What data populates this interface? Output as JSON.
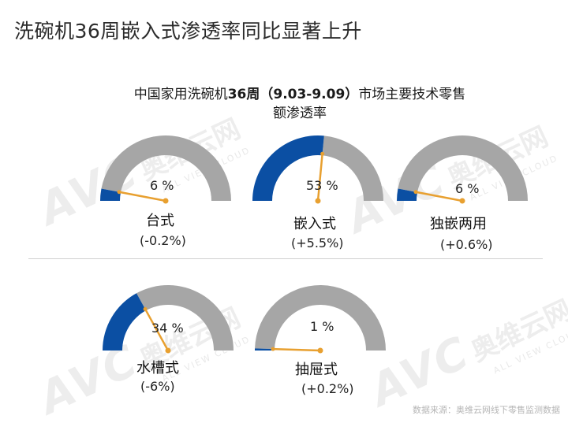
{
  "page_title": "洗碗机36周嵌入式渗透率同比显著上升",
  "chart_title": {
    "prefix": "中国家用洗碗机",
    "week": "36周",
    "range": "（9.03-9.09）",
    "suffix": "市场主要技术零售",
    "line2": "额渗透率"
  },
  "watermark": {
    "logo": "AVC",
    "cn": "奥维云网",
    "en": "ALL VIEW CLOUD"
  },
  "source": "数据来源：奥维云网线下零售监测数据",
  "colors": {
    "filled": "#0b4fa3",
    "track": "#a6a6a6",
    "needle": "#e8a030"
  },
  "chart_data": {
    "type": "gauge",
    "unit": "%",
    "gauges": [
      {
        "label": "台式",
        "value": 6,
        "value_text": "6 %",
        "change": "(-0.2%)"
      },
      {
        "label": "嵌入式",
        "value": 53,
        "value_text": "53 %",
        "change": "(+5.5%)"
      },
      {
        "label": "独嵌两用",
        "value": 6,
        "value_text": "6 %",
        "change": "(+0.6%)"
      },
      {
        "label": "水槽式",
        "value": 34,
        "value_text": "34 %",
        "change": "(-6%)"
      },
      {
        "label": "抽屉式",
        "value": 1,
        "value_text": "1 %",
        "change": "(+0.2%)"
      }
    ]
  }
}
